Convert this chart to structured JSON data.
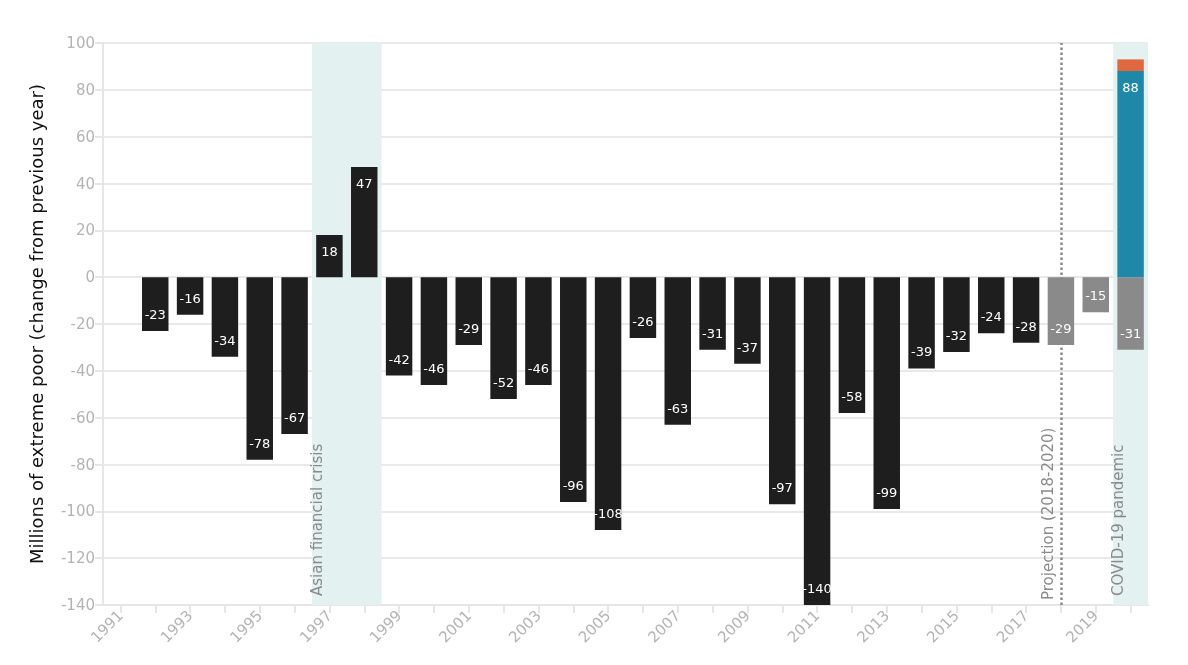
{
  "chart_data": {
    "type": "bar",
    "ylabel": "Millions of extreme poor (change from previous year)",
    "x": [
      1992,
      1993,
      1994,
      1995,
      1996,
      1997,
      1998,
      1999,
      2000,
      2001,
      2002,
      2003,
      2004,
      2005,
      2006,
      2007,
      2008,
      2009,
      2010,
      2011,
      2012,
      2013,
      2014,
      2015,
      2016,
      2017,
      2018,
      2019,
      2020
    ],
    "xlim": [
      1990.5,
      2020.5
    ],
    "xticks": [
      1991,
      {
        "value": 1992,
        "label": null
      },
      1993,
      {
        "value": 1994,
        "label": null
      },
      1995,
      {
        "value": 1996,
        "label": null
      },
      1997,
      {
        "value": 1998,
        "label": null
      },
      1999,
      {
        "value": 2000,
        "label": null
      },
      2001,
      {
        "value": 2002,
        "label": null
      },
      2003,
      {
        "value": 2004,
        "label": null
      },
      2005,
      {
        "value": 2006,
        "label": null
      },
      2007,
      {
        "value": 2008,
        "label": null
      },
      2009,
      {
        "value": 2010,
        "label": null
      },
      2011,
      {
        "value": 2012,
        "label": null
      },
      2013,
      {
        "value": 2014,
        "label": null
      },
      2015,
      {
        "value": 2016,
        "label": null
      },
      2017,
      {
        "value": 2018,
        "label": null
      },
      2019,
      {
        "value": 2020,
        "label": null
      }
    ],
    "ylim": [
      -140,
      100
    ],
    "yticks": [
      -140,
      -120,
      -100,
      -80,
      -60,
      -40,
      -20,
      0,
      20,
      40,
      60,
      80,
      100
    ],
    "stacked": true,
    "grid": "y",
    "series": [
      {
        "color": "#1e1e1e",
        "values": [
          -23,
          -16,
          -34,
          -78,
          -67,
          18,
          47,
          -42,
          -46,
          -29,
          -52,
          -46,
          -96,
          -108,
          -26,
          -63,
          -31,
          -37,
          -97,
          -140,
          -58,
          -99,
          -39,
          -32,
          -24,
          -28,
          null,
          null,
          null
        ],
        "value_labels": [
          "-23",
          "-16",
          "-34",
          "-78",
          "-67",
          "18",
          "47",
          "-42",
          "-46",
          "-29",
          "-52",
          "-46",
          "-96",
          "-108",
          "-26",
          "-63",
          "-31",
          "-37",
          "-97",
          "-140",
          "-58",
          "-99",
          "-39",
          "-32",
          "-24",
          "-28",
          null,
          null,
          null
        ]
      },
      {
        "color": "#8a8a8a",
        "values": [
          null,
          null,
          null,
          null,
          null,
          null,
          null,
          null,
          null,
          null,
          null,
          null,
          null,
          null,
          null,
          null,
          null,
          null,
          null,
          null,
          null,
          null,
          null,
          null,
          null,
          null,
          -29,
          -15,
          -31
        ],
        "value_labels": [
          null,
          null,
          null,
          null,
          null,
          null,
          null,
          null,
          null,
          null,
          null,
          null,
          null,
          null,
          null,
          null,
          null,
          null,
          null,
          null,
          null,
          null,
          null,
          null,
          null,
          null,
          "-29",
          "-15",
          "-31"
        ]
      },
      {
        "color": "#1f87a8",
        "values": [
          null,
          null,
          null,
          null,
          null,
          null,
          null,
          null,
          null,
          null,
          null,
          null,
          null,
          null,
          null,
          null,
          null,
          null,
          null,
          null,
          null,
          null,
          null,
          null,
          null,
          null,
          null,
          null,
          88
        ],
        "value_labels": [
          null,
          null,
          null,
          null,
          null,
          null,
          null,
          null,
          null,
          null,
          null,
          null,
          null,
          null,
          null,
          null,
          null,
          null,
          null,
          null,
          null,
          null,
          null,
          null,
          null,
          null,
          null,
          null,
          "88"
        ]
      },
      {
        "color": "#e06840",
        "values": [
          null,
          null,
          null,
          null,
          null,
          null,
          null,
          null,
          null,
          null,
          null,
          null,
          null,
          null,
          null,
          null,
          null,
          null,
          null,
          null,
          null,
          null,
          null,
          null,
          null,
          null,
          null,
          null,
          5
        ]
      }
    ],
    "bands": [
      {
        "axis": "x",
        "from": 1996.5,
        "to": 1998.5,
        "label": "Asian financial crisis",
        "color": "#e3f1f1"
      },
      {
        "axis": "x",
        "from": 2019.5,
        "to": 2020.5,
        "label": "COVID-19 pandemic",
        "color": "#e3f1f1"
      }
    ],
    "ref_lines": [
      {
        "axis": "x",
        "value": 2018,
        "label": "Projection (2018-2020)",
        "color": "#8a8a8a",
        "line_style": "dotted"
      }
    ]
  }
}
